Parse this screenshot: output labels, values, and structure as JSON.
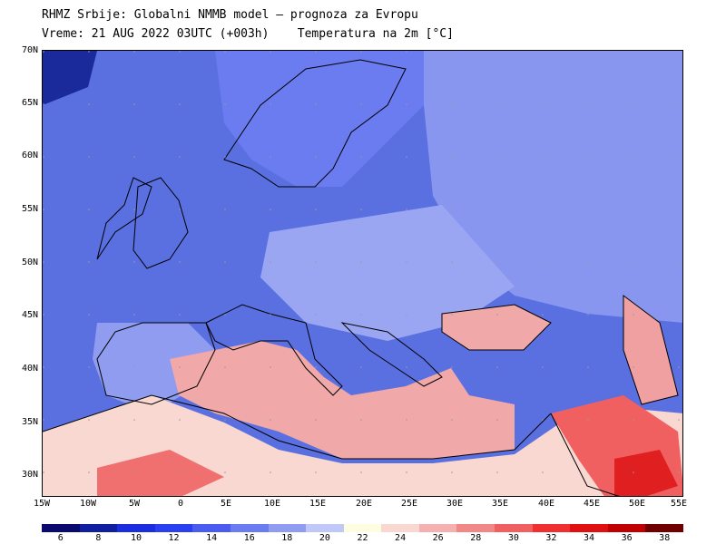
{
  "header": {
    "line1": "RHMZ Srbije: Globalni NMMB model — prognoza za Evropu",
    "line2_time": "Vreme: 21 AUG 2022 03UTC (+003h)",
    "line2_variable": "Temperatura na 2m [°C]"
  },
  "map": {
    "lat_labels": [
      "70N",
      "65N",
      "60N",
      "55N",
      "50N",
      "45N",
      "40N",
      "35N",
      "30N"
    ],
    "lon_labels": [
      "15W",
      "10W",
      "5W",
      "0",
      "5E",
      "10E",
      "15E",
      "20E",
      "25E",
      "30E",
      "35E",
      "40E",
      "45E",
      "50E",
      "55E"
    ],
    "lon_range": [
      -15,
      55
    ],
    "lat_range": [
      28,
      70
    ],
    "colors": {
      "ocean_cool": "#4f66d9",
      "land_cool": "#7b8df0",
      "mild": "#b8c0f5",
      "warm_sea": "#f0a8a8",
      "hot": "#f06060",
      "very_hot": "#e02020",
      "coast": "#000000"
    }
  },
  "legend": {
    "labels": [
      "6",
      "8",
      "10",
      "12",
      "14",
      "16",
      "18",
      "20",
      "22",
      "24",
      "26",
      "28",
      "30",
      "32",
      "34",
      "36",
      "38"
    ],
    "colors": [
      "#0a0a6e",
      "#0f1fa0",
      "#1a2ee0",
      "#2a40f0",
      "#4a5cf0",
      "#6a7cf0",
      "#8f9cf0",
      "#c0c8f8",
      "#fdfde0",
      "#f8d8d0",
      "#f5b0b0",
      "#f08888",
      "#f06060",
      "#f03030",
      "#e01010",
      "#c00000",
      "#700000"
    ]
  }
}
